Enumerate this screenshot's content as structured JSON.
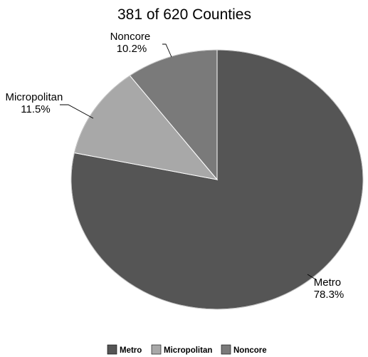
{
  "chart_data": {
    "type": "pie",
    "title": "381 of 620 Counties",
    "slices": [
      {
        "label": "Metro",
        "pct_label": "78.3%",
        "value": 78.3,
        "color": "#555555"
      },
      {
        "label": "Micropolitan",
        "pct_label": "11.5%",
        "value": 11.5,
        "color": "#a8a8a8"
      },
      {
        "label": "Noncore",
        "pct_label": "10.2%",
        "value": 10.2,
        "color": "#7a7a7a"
      }
    ],
    "start_angle_deg": 0,
    "direction": "clockwise",
    "legend": {
      "placement": "bottom",
      "entries": [
        "Metro",
        "Micropolitan",
        "Noncore"
      ]
    }
  }
}
